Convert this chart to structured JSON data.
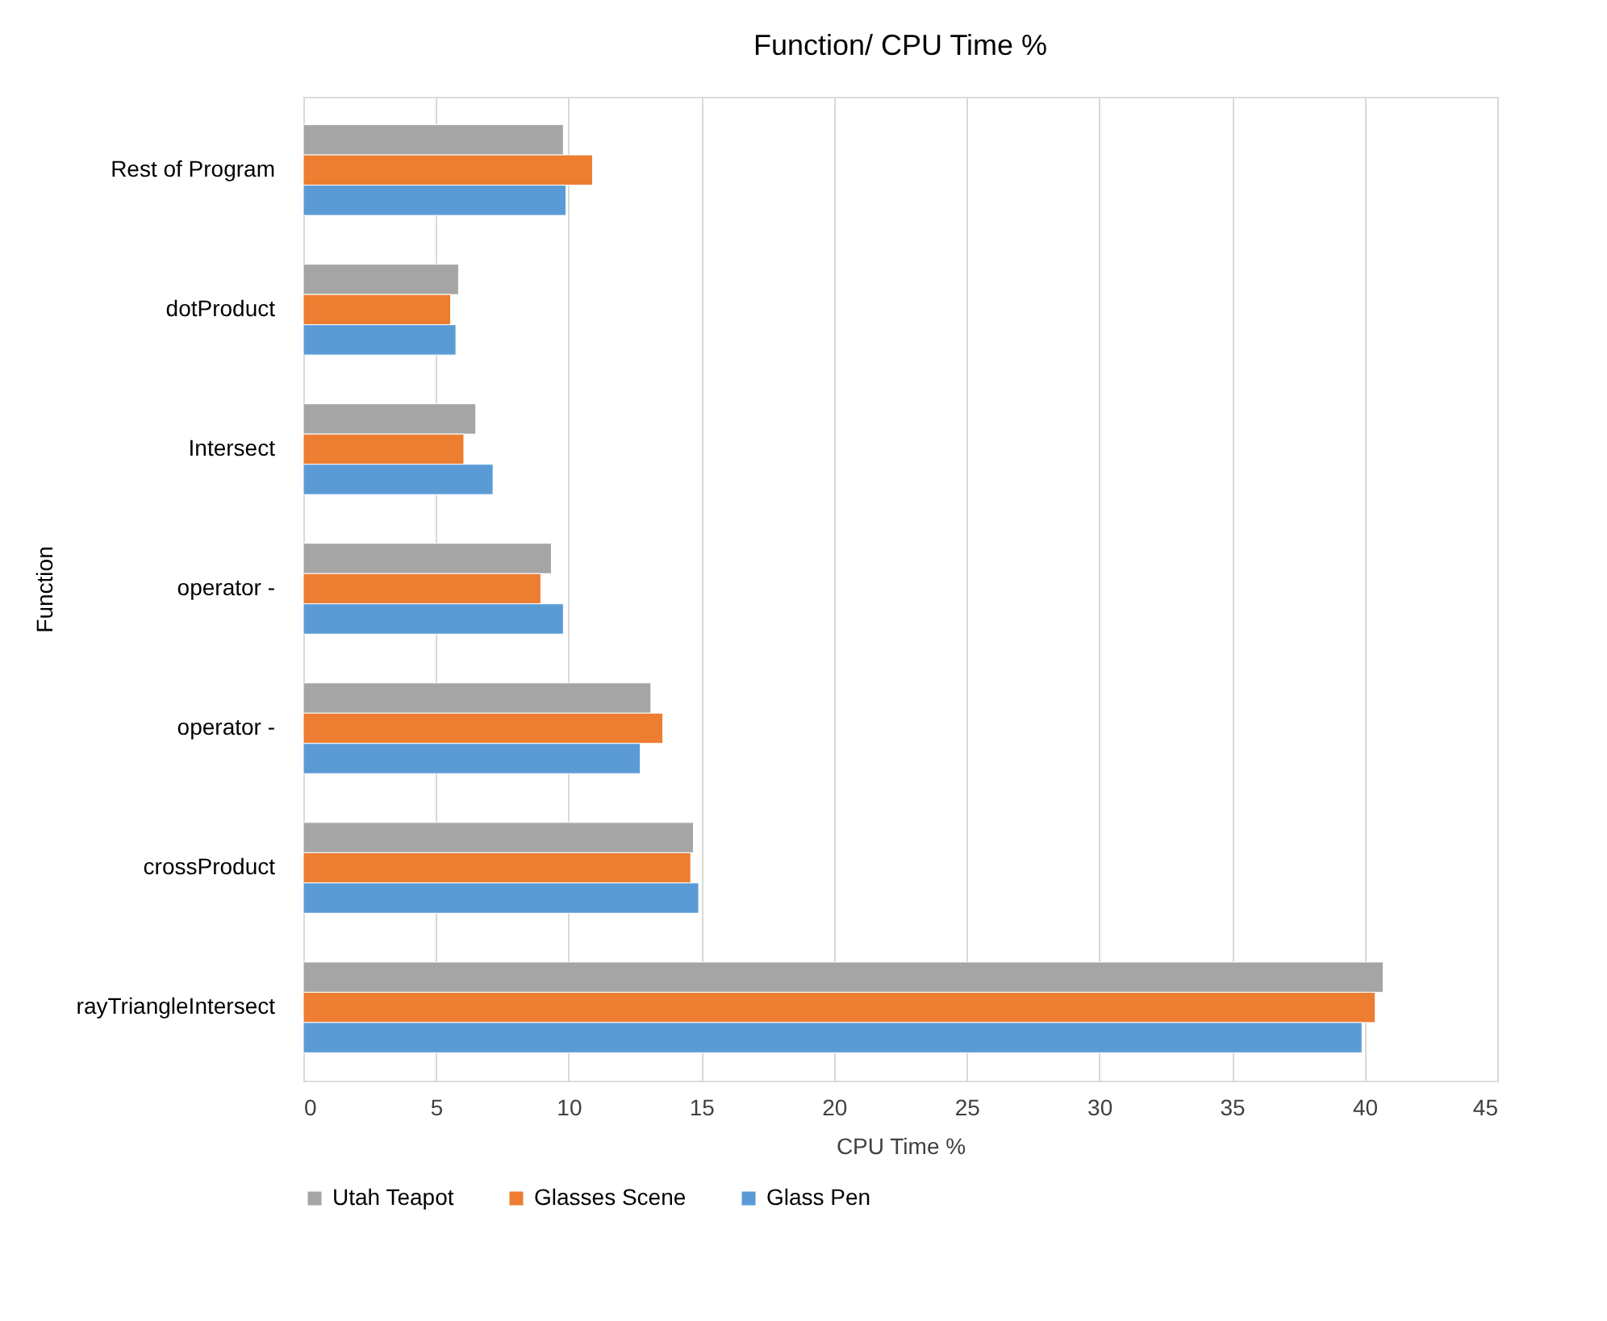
{
  "chart_data": {
    "type": "bar",
    "orientation": "horizontal",
    "title": "Function/ CPU Time %",
    "xlabel": "CPU Time %",
    "ylabel": "Function",
    "categories": [
      "Rest of Program",
      "dotProduct",
      "Intersect",
      "operator -",
      "operator -",
      "crossProduct",
      "rayTriangleIntersect"
    ],
    "series": [
      {
        "name": "Utah Teapot",
        "color": "#a5a5a5",
        "values": [
          9.8,
          5.85,
          6.5,
          9.35,
          13.1,
          14.7,
          40.7
        ]
      },
      {
        "name": "Glasses Scene",
        "color": "#ed7d31",
        "values": [
          10.9,
          5.55,
          6.05,
          8.95,
          13.55,
          14.6,
          40.4
        ]
      },
      {
        "name": "Glass Pen",
        "color": "#5b9bd5",
        "values": [
          9.9,
          5.75,
          7.15,
          9.8,
          12.7,
          14.9,
          39.9
        ]
      }
    ],
    "xlim": [
      0,
      45
    ],
    "xticks": [
      0,
      5,
      10,
      15,
      20,
      25,
      30,
      35,
      40,
      45
    ],
    "grid": "x",
    "legend": "bottom"
  }
}
